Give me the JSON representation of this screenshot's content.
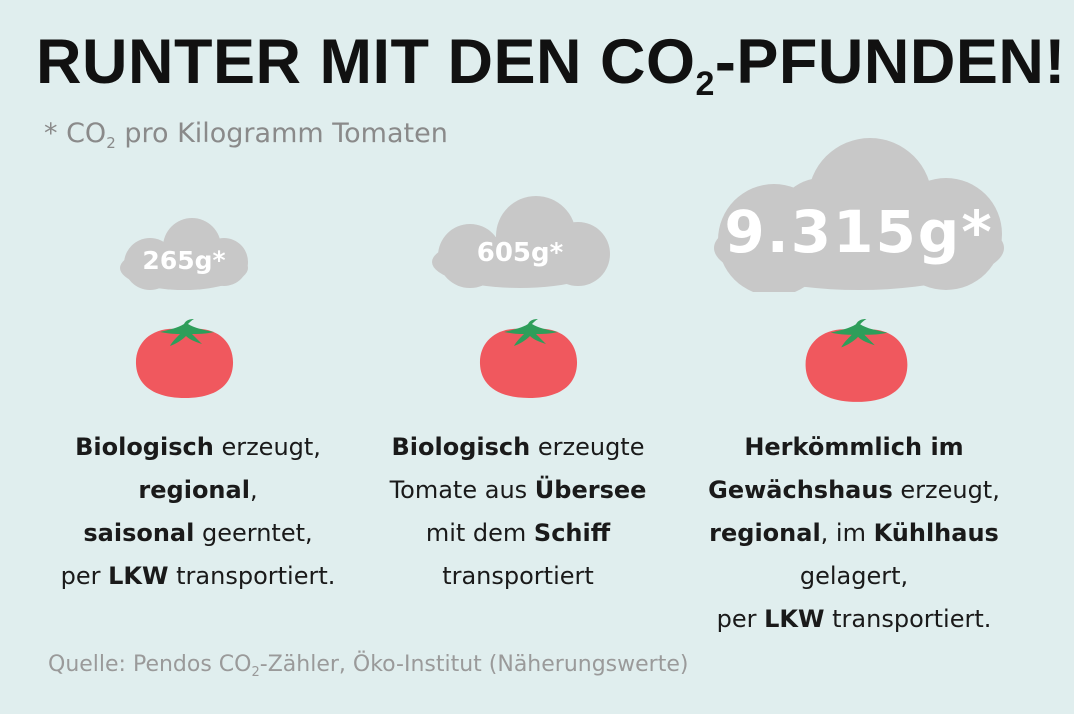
{
  "title": {
    "main": "RUNTER MIT DEN CO",
    "sub": "2",
    "tail": "-PFUNDEN!"
  },
  "subtitle": {
    "prefix": "* CO",
    "sub": "2",
    "text": " pro Kilogramm Tomaten"
  },
  "items": [
    {
      "value": "265g*",
      "lines": [
        [
          {
            "t": "Biologisch",
            "b": true
          },
          {
            "t": " erzeugt,"
          }
        ],
        [
          {
            "t": "regional",
            "b": true
          },
          {
            "t": ","
          }
        ],
        [
          {
            "t": "saisonal",
            "b": true
          },
          {
            "t": " geerntet,"
          }
        ],
        [
          {
            "t": "per "
          },
          {
            "t": "LKW",
            "b": true
          },
          {
            "t": " transportiert."
          }
        ]
      ]
    },
    {
      "value": "605g*",
      "lines": [
        [
          {
            "t": "Biologisch",
            "b": true
          },
          {
            "t": " erzeugte"
          }
        ],
        [
          {
            "t": "Tomate aus "
          },
          {
            "t": "Übersee",
            "b": true
          }
        ],
        [
          {
            "t": "mit dem "
          },
          {
            "t": "Schiff",
            "b": true
          }
        ],
        [
          {
            "t": "transportiert"
          }
        ]
      ]
    },
    {
      "value": "9.315g*",
      "lines": [
        [
          {
            "t": "Herkömmlich im",
            "b": true
          }
        ],
        [
          {
            "t": "Gewächshaus",
            "b": true
          },
          {
            "t": " erzeugt,"
          }
        ],
        [
          {
            "t": "regional",
            "b": true
          },
          {
            "t": ", im "
          },
          {
            "t": "Kühlhaus",
            "b": true
          }
        ],
        [
          {
            "t": "gelagert,"
          }
        ],
        [
          {
            "t": "per "
          },
          {
            "t": "LKW",
            "b": true
          },
          {
            "t": " transportiert."
          }
        ]
      ]
    }
  ],
  "source": {
    "prefix": "Quelle: Pendos CO",
    "sub": "2",
    "text": "-Zähler, Öko-Institut (Näherungswerte)"
  },
  "colors": {
    "background": "#e0eeee",
    "cloud": "#c8c8c8",
    "tomato": "#f0585e",
    "stem": "#2e9e5a"
  },
  "icons": [
    "cloud-icon",
    "tomato-icon"
  ]
}
